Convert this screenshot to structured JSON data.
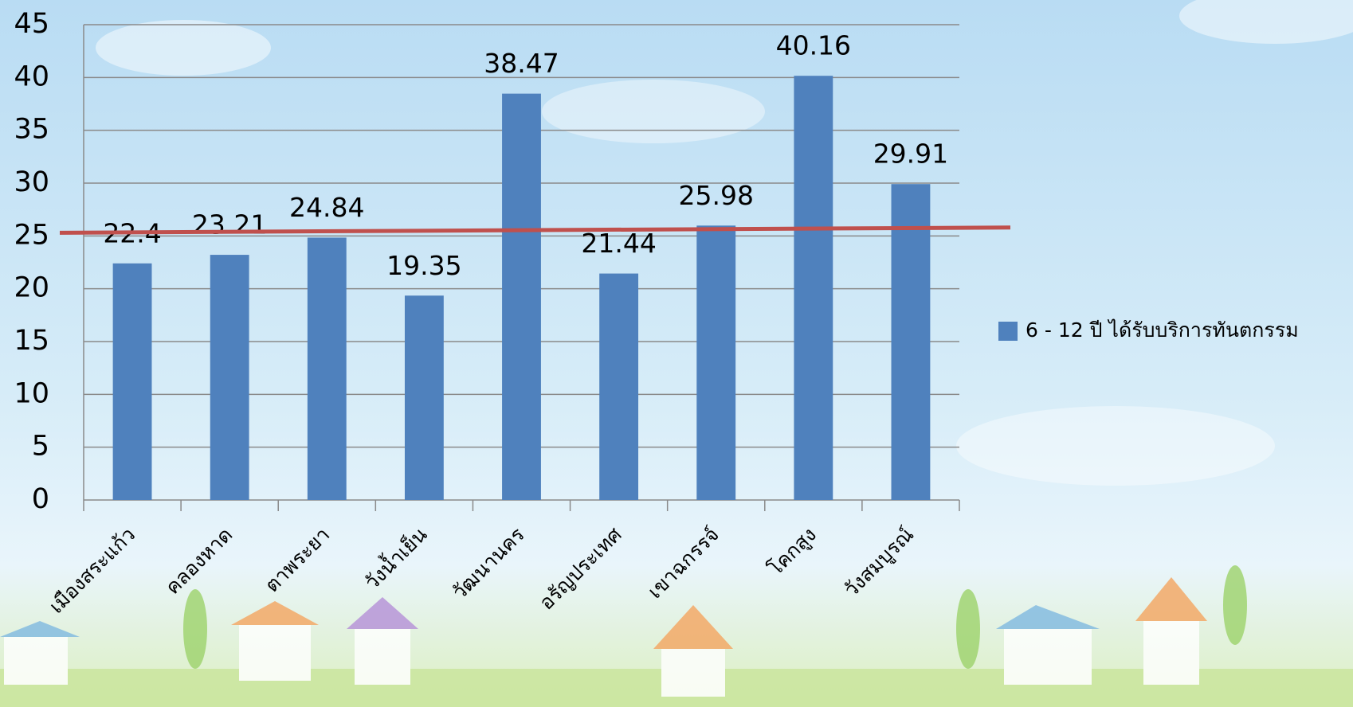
{
  "chart_data": {
    "type": "bar",
    "categories": [
      "เมืองสระแก้ว",
      "คลองหาด",
      "ตาพระยา",
      "วังน้ำเย็น",
      "วัฒนานคร",
      "อรัญประเทศ",
      "เขาฉกรรจ์",
      "โคกสูง",
      "วังสมบูรณ์"
    ],
    "series": [
      {
        "name": "6 - 12 ปี ได้รับบริการทันตกรรม",
        "color": "#4f81bd",
        "values": [
          22.4,
          23.21,
          24.84,
          19.35,
          38.47,
          21.44,
          25.98,
          40.16,
          29.91
        ]
      }
    ],
    "reference_line": {
      "color": "#c0504d",
      "values": [
        25.3,
        25.8
      ]
    },
    "ylim": [
      0,
      45
    ],
    "yticks": [
      0,
      5,
      10,
      15,
      20,
      25,
      30,
      35,
      40,
      45
    ],
    "grid": true,
    "legend": "right"
  }
}
